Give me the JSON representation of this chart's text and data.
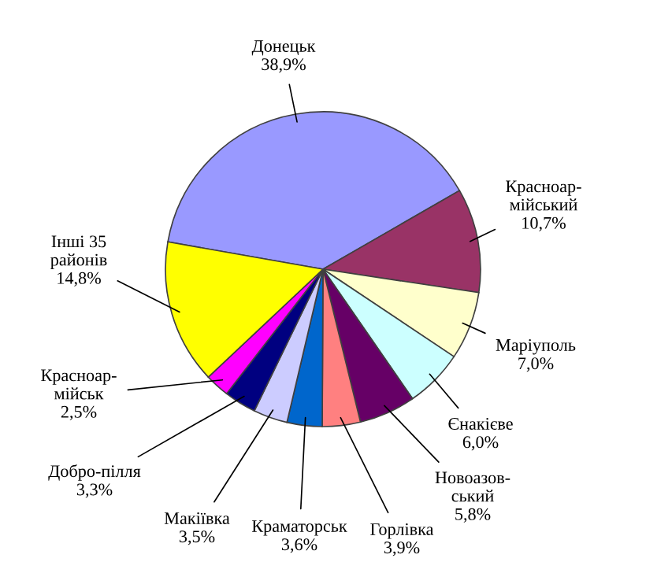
{
  "chart_data": {
    "type": "pie",
    "categories": [
      "Донецьк",
      "Красноар-\nмійський",
      "Маріуполь",
      "Єнакієве",
      "Новоазов-\nський",
      "Горлівка",
      "Краматорськ",
      "Макіївка",
      "Добро-пілля",
      "Красноар-\nмійськ",
      "Інші 35\nрайонів"
    ],
    "values": [
      38.9,
      10.7,
      7.0,
      6.0,
      5.8,
      3.9,
      3.6,
      3.5,
      3.3,
      2.5,
      14.8
    ],
    "value_labels": [
      "38,9%",
      "10,7%",
      "7,0%",
      "6,0%",
      "5,8%",
      "3,9%",
      "3,6%",
      "3,5%",
      "3,3%",
      "2,5%",
      "14,8%"
    ],
    "colors": [
      "#9999ff",
      "#993366",
      "#ffffcc",
      "#ccffff",
      "#660066",
      "#ff8080",
      "#0066cc",
      "#ccccff",
      "#000080",
      "#ff00ff",
      "#ffff00"
    ]
  }
}
